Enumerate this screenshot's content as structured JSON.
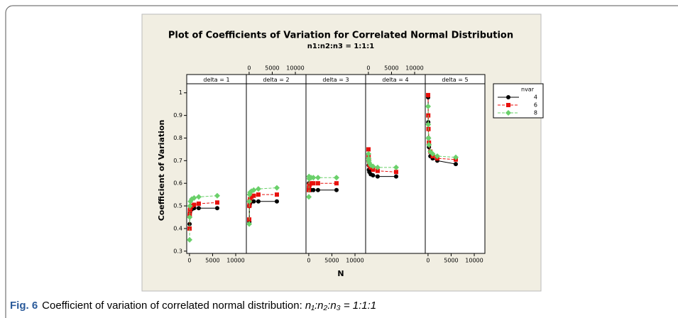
{
  "chart_data": {
    "type": "line",
    "title": "Plot of Coefficients of Variation for Correlated Normal Distribution",
    "subtitle": "n1:n2:n3 = 1:1:1",
    "xlabel": "N",
    "ylabel": "Coefficient of Variation",
    "x": [
      20,
      50,
      100,
      200,
      500,
      1000,
      2000,
      6000
    ],
    "xlim": [
      -600,
      12300
    ],
    "xticks": [
      0,
      5000,
      10000
    ],
    "ylim": [
      0.29,
      1.04
    ],
    "yticks": [
      0.3,
      0.4,
      0.5,
      0.6,
      0.7,
      0.8,
      0.9,
      1.0
    ],
    "legend": {
      "title": "nvar",
      "entries": [
        {
          "name": "4",
          "color": "#000000",
          "marker": "circle",
          "dash": false
        },
        {
          "name": "6",
          "color": "#e8100c",
          "marker": "square",
          "dash": true
        },
        {
          "name": "8",
          "color": "#6ad06a",
          "marker": "diamond",
          "dash": true
        }
      ]
    },
    "panels": [
      {
        "title": "delta = 1",
        "series": [
          [
            0.42,
            0.46,
            0.47,
            0.48,
            0.485,
            0.49,
            0.49,
            0.49
          ],
          [
            0.4,
            0.46,
            0.48,
            0.49,
            0.5,
            0.505,
            0.51,
            0.515
          ],
          [
            0.35,
            0.45,
            0.5,
            0.52,
            0.53,
            0.535,
            0.54,
            0.545
          ]
        ]
      },
      {
        "title": "delta = 2",
        "series": [
          [
            0.5,
            0.43,
            0.5,
            0.51,
            0.52,
            0.52,
            0.52,
            0.52
          ],
          [
            0.44,
            0.5,
            0.52,
            0.53,
            0.54,
            0.545,
            0.55,
            0.55
          ],
          [
            0.42,
            0.52,
            0.55,
            0.56,
            0.565,
            0.57,
            0.575,
            0.58
          ]
        ]
      },
      {
        "title": "delta = 3",
        "series": [
          [
            0.6,
            0.57,
            0.57,
            0.57,
            0.57,
            0.57,
            0.57,
            0.57
          ],
          [
            0.57,
            0.58,
            0.59,
            0.595,
            0.6,
            0.6,
            0.6,
            0.6
          ],
          [
            0.54,
            0.63,
            0.62,
            0.625,
            0.625,
            0.625,
            0.625,
            0.625
          ]
        ]
      },
      {
        "title": "delta = 4",
        "series": [
          [
            0.7,
            0.68,
            0.66,
            0.65,
            0.64,
            0.635,
            0.63,
            0.63
          ],
          [
            0.75,
            0.72,
            0.7,
            0.68,
            0.67,
            0.66,
            0.655,
            0.65
          ],
          [
            0.73,
            0.71,
            0.7,
            0.69,
            0.68,
            0.675,
            0.67,
            0.67
          ]
        ]
      },
      {
        "title": "delta = 5",
        "series": [
          [
            0.98,
            0.87,
            0.8,
            0.76,
            0.72,
            0.71,
            0.7,
            0.685
          ],
          [
            0.99,
            0.9,
            0.84,
            0.78,
            0.74,
            0.72,
            0.71,
            0.705
          ],
          [
            0.94,
            0.86,
            0.8,
            0.77,
            0.74,
            0.73,
            0.72,
            0.715
          ]
        ]
      }
    ]
  },
  "caption": {
    "label": "Fig. 6",
    "text": "Coefficient of variation of correlated normal distribution: ",
    "math": "n₁:n₂:n₃ = 1:1:1"
  }
}
